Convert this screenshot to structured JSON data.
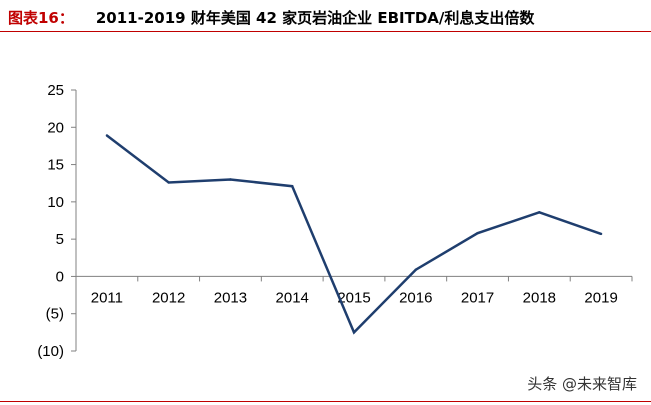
{
  "figure": {
    "label": "图表16：",
    "title": "2011-2019 财年美国 42 家页岩油企业 EBITDA/利息支出倍数"
  },
  "watermark": "头条 @未来智库",
  "colors": {
    "accent_red": "#c00000",
    "series_line": "#1f3e6e",
    "axis": "#808080"
  },
  "chart_data": {
    "type": "line",
    "title": "2011-2019 财年美国 42 家页岩油企业 EBITDA/利息支出倍数",
    "categories": [
      "2011",
      "2012",
      "2013",
      "2014",
      "2015",
      "2016",
      "2017",
      "2018",
      "2019"
    ],
    "series": [
      {
        "values": [
          18.9,
          12.6,
          13.0,
          12.1,
          -7.5,
          0.9,
          5.8,
          8.6,
          5.7
        ]
      }
    ],
    "ylim": [
      -10,
      25
    ],
    "yticks": [
      25,
      20,
      15,
      10,
      5,
      0,
      -5,
      -10
    ],
    "ytick_labels": [
      "25",
      "20",
      "15",
      "10",
      "5",
      "0",
      "(5)",
      "(10)"
    ],
    "grid": false,
    "legend": "none"
  }
}
